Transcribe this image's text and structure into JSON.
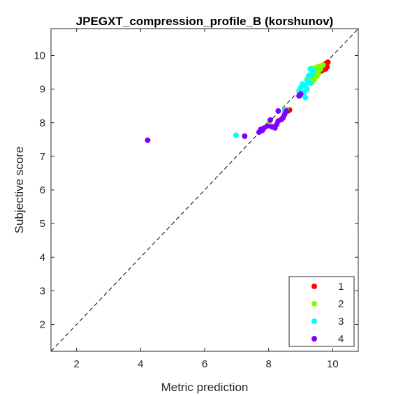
{
  "chart_data": {
    "type": "scatter",
    "title": "JPEGXT_compression_profile_B (korshunov)",
    "xlabel": "Metric prediction",
    "ylabel": "Subjective score",
    "xlim": [
      1.2,
      10.8
    ],
    "ylim": [
      1.2,
      10.8
    ],
    "xticks": [
      2,
      4,
      6,
      8,
      10
    ],
    "yticks": [
      2,
      3,
      4,
      5,
      6,
      7,
      8,
      9,
      10
    ],
    "grid": false,
    "box": true,
    "diagonal_reference_line": true,
    "legend_position": "bottom-right",
    "series": [
      {
        "name": "1",
        "color": "#ff0000",
        "points": [
          [
            9.85,
            9.8
          ],
          [
            9.78,
            9.76
          ],
          [
            9.8,
            9.72
          ],
          [
            9.76,
            9.68
          ],
          [
            9.82,
            9.66
          ],
          [
            9.72,
            9.64
          ],
          [
            9.78,
            9.6
          ],
          [
            9.7,
            9.58
          ],
          [
            9.66,
            9.55
          ],
          [
            9.6,
            9.52
          ],
          [
            9.74,
            9.62
          ],
          [
            9.68,
            9.7
          ],
          [
            8.65,
            8.38
          ],
          [
            8.6,
            8.35
          ]
        ]
      },
      {
        "name": "2",
        "color": "#80ff00",
        "points": [
          [
            9.7,
            9.72
          ],
          [
            9.6,
            9.68
          ],
          [
            9.5,
            9.65
          ],
          [
            9.35,
            9.62
          ],
          [
            9.55,
            9.55
          ],
          [
            9.45,
            9.5
          ],
          [
            9.4,
            9.42
          ],
          [
            9.5,
            9.38
          ],
          [
            9.3,
            9.35
          ],
          [
            9.35,
            9.2
          ],
          [
            9.42,
            9.28
          ],
          [
            9.55,
            9.45
          ],
          [
            9.2,
            9.3
          ],
          [
            9.62,
            9.6
          ],
          [
            8.0,
            7.97
          ],
          [
            8.55,
            8.4
          ]
        ]
      },
      {
        "name": "3",
        "color": "#00ffff",
        "points": [
          [
            9.3,
            9.6
          ],
          [
            9.4,
            9.55
          ],
          [
            9.35,
            9.45
          ],
          [
            9.25,
            9.4
          ],
          [
            9.2,
            9.25
          ],
          [
            9.3,
            9.18
          ],
          [
            9.15,
            9.1
          ],
          [
            9.05,
            9.15
          ],
          [
            9.0,
            9.05
          ],
          [
            8.95,
            8.95
          ],
          [
            9.1,
            8.9
          ],
          [
            9.15,
            8.75
          ],
          [
            9.0,
            8.82
          ],
          [
            9.2,
            9.0
          ],
          [
            6.98,
            7.63
          ],
          [
            8.5,
            8.35
          ]
        ]
      },
      {
        "name": "4",
        "color": "#8000ff",
        "points": [
          [
            4.22,
            7.48
          ],
          [
            7.25,
            7.6
          ],
          [
            7.7,
            7.72
          ],
          [
            7.75,
            7.8
          ],
          [
            7.85,
            7.84
          ],
          [
            7.8,
            7.77
          ],
          [
            7.95,
            7.9
          ],
          [
            8.1,
            7.88
          ],
          [
            8.2,
            7.85
          ],
          [
            8.25,
            7.95
          ],
          [
            8.3,
            8.05
          ],
          [
            8.05,
            8.08
          ],
          [
            8.45,
            8.15
          ],
          [
            8.5,
            8.25
          ],
          [
            8.3,
            8.35
          ],
          [
            8.55,
            8.35
          ],
          [
            8.95,
            8.8
          ],
          [
            8.4,
            8.1
          ],
          [
            9.0,
            8.85
          ]
        ]
      }
    ]
  }
}
